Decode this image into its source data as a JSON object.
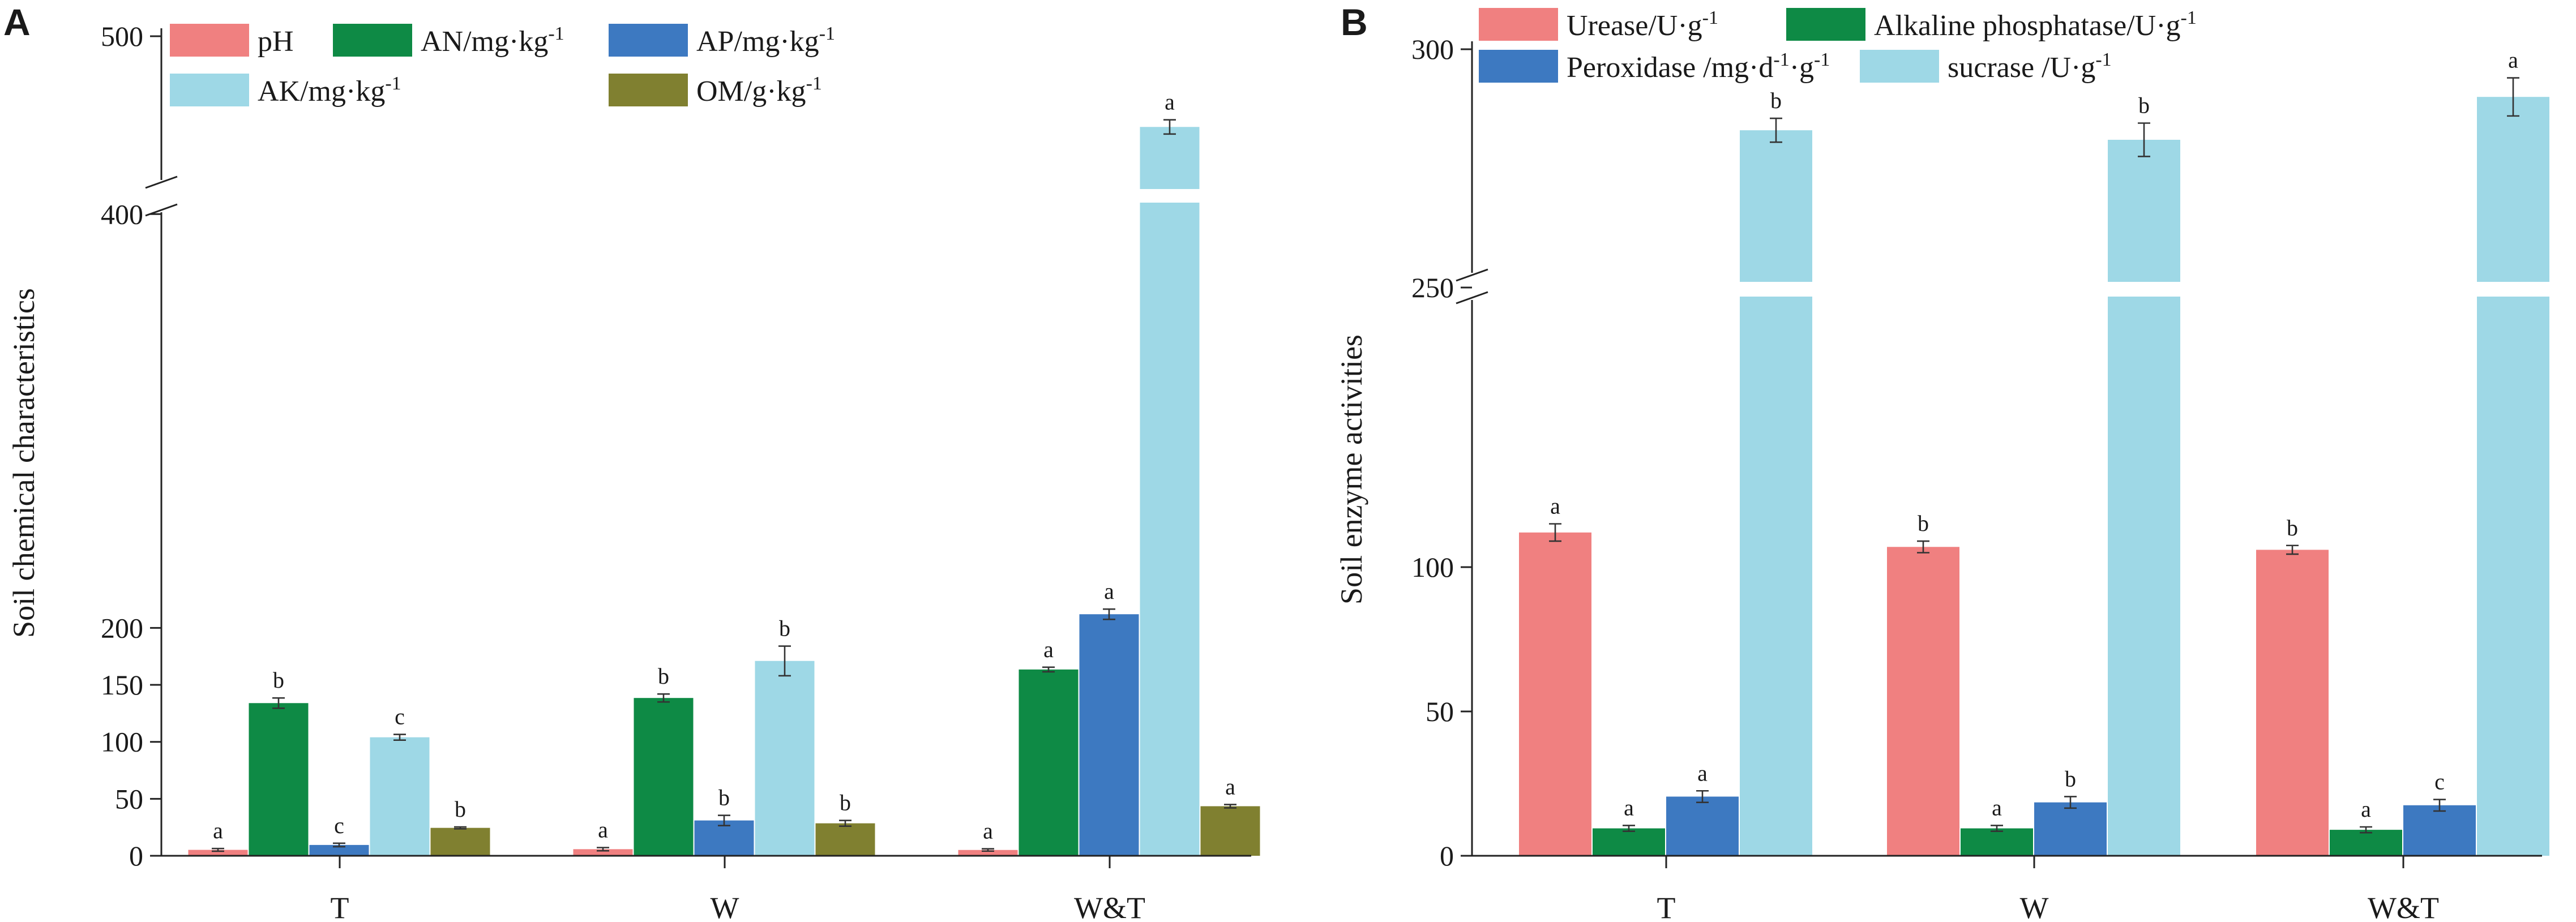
{
  "colors": {
    "pink": "#F08080",
    "green": "#0E8A45",
    "blue": "#3D79C1",
    "lightblue": "#9ED8E6",
    "olive": "#808030"
  },
  "chart_data": [
    {
      "panel": "A",
      "type": "bar",
      "ylabel": "Soil chemical characteristics",
      "categories": [
        "T",
        "W",
        "W&T"
      ],
      "axis_break": {
        "from": 230,
        "to": 395
      },
      "ylim": [
        0,
        500
      ],
      "yticks": [
        0,
        50,
        100,
        150,
        200,
        400,
        500
      ],
      "series": [
        {
          "name": "pH",
          "color": "#F08080",
          "values": [
            5.2,
            5.8,
            5.1
          ],
          "errors": [
            1.2,
            1.4,
            1.0
          ],
          "letters": [
            "a",
            "a",
            "a"
          ]
        },
        {
          "name": "AN/mg·kg",
          "sup": "-1",
          "color": "#0E8A45",
          "values": [
            134,
            138.5,
            163.5
          ],
          "errors": [
            4.5,
            3.5,
            2.0
          ],
          "letters": [
            "b",
            "b",
            "a"
          ]
        },
        {
          "name": "AP/mg·kg",
          "sup": "-1",
          "color": "#3D79C1",
          "values": [
            9.5,
            31,
            212
          ],
          "errors": [
            1.5,
            4.5,
            4.5
          ],
          "letters": [
            "c",
            "b",
            "a"
          ]
        },
        {
          "name": "AK/mg·kg",
          "sup": "-1",
          "color": "#9ED8E6",
          "values": [
            104,
            171,
            449
          ],
          "errors": [
            2.5,
            13,
            4.0
          ],
          "letters": [
            "c",
            "b",
            "a"
          ]
        },
        {
          "name": "OM/g·kg",
          "sup": "-1",
          "color": "#808030",
          "values": [
            24.5,
            28.5,
            43.5
          ],
          "errors": [
            0.8,
            2.5,
            1.5
          ],
          "letters": [
            "b",
            "b",
            "a"
          ]
        }
      ]
    },
    {
      "panel": "B",
      "type": "bar",
      "ylabel": "Soil enzyme activities",
      "categories": [
        "T",
        "W",
        "W&T"
      ],
      "axis_break": {
        "from": 160,
        "to": 250
      },
      "ylim": [
        0,
        300
      ],
      "yticks": [
        0,
        50,
        100,
        250,
        300
      ],
      "series": [
        {
          "name": "Urease/U·g",
          "sup": "-1",
          "color": "#F08080",
          "values": [
            112,
            107,
            106
          ],
          "errors": [
            3.0,
            2.0,
            1.5
          ],
          "letters": [
            "a",
            "b",
            "b"
          ]
        },
        {
          "name": "Alkaline  phosphatase/U·g",
          "sup": "-1",
          "color": "#0E8A45",
          "values": [
            9.5,
            9.5,
            9.0
          ],
          "errors": [
            1.0,
            1.0,
            1.0
          ],
          "letters": [
            "a",
            "a",
            "a"
          ]
        },
        {
          "name": "Peroxidase /mg·d",
          "sup": "-1",
          "name2": "·g",
          "sup2": "-1",
          "color": "#3D79C1",
          "values": [
            20.5,
            18.5,
            17.5
          ],
          "errors": [
            2.0,
            2.0,
            2.0
          ],
          "letters": [
            "a",
            "b",
            "c"
          ]
        },
        {
          "name": "sucrase /U·g",
          "sup": "-1",
          "color": "#9ED8E6",
          "values": [
            283,
            281,
            290
          ],
          "errors": [
            2.5,
            3.5,
            4.0
          ],
          "letters": [
            "b",
            "b",
            "a"
          ]
        }
      ]
    }
  ]
}
